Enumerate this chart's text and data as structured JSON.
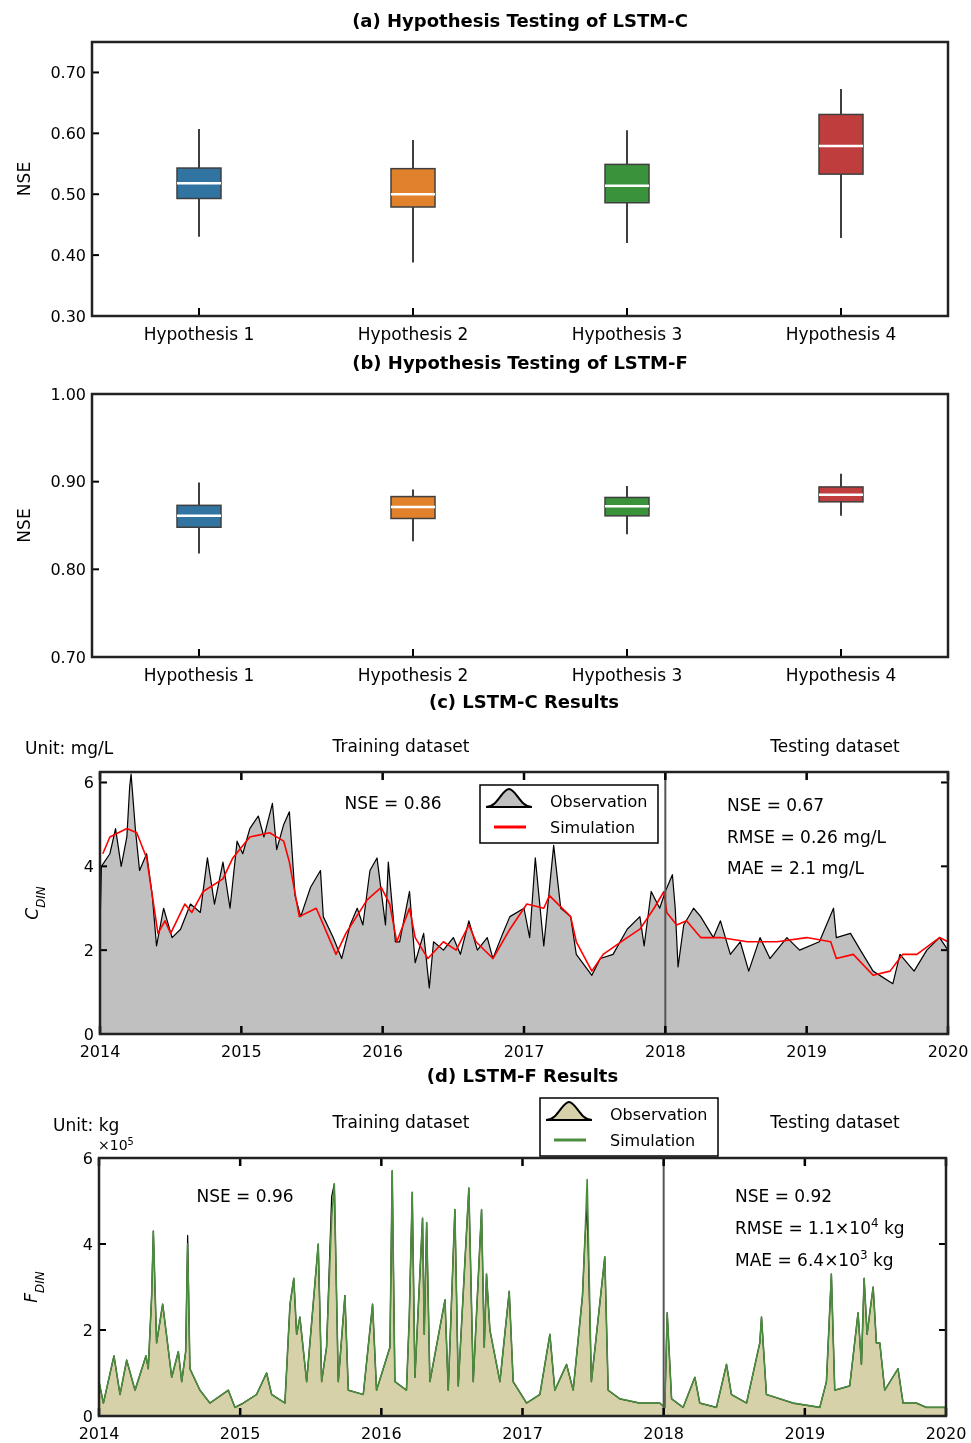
{
  "chart_data": [
    {
      "type": "box",
      "title": "(a) Hypothesis Testing of LSTM-C",
      "ylabel": "NSE",
      "categories": [
        "Hypothesis 1",
        "Hypothesis 2",
        "Hypothesis 3",
        "Hypothesis 4"
      ],
      "colors": [
        "#3274a1",
        "#e1812c",
        "#3a923a",
        "#c03d3e"
      ],
      "boxes": [
        {
          "low": 0.43,
          "q1": 0.493,
          "median": 0.518,
          "q3": 0.543,
          "high": 0.607
        },
        {
          "low": 0.388,
          "q1": 0.479,
          "median": 0.5,
          "q3": 0.542,
          "high": 0.589
        },
        {
          "low": 0.42,
          "q1": 0.486,
          "median": 0.514,
          "q3": 0.549,
          "high": 0.605
        },
        {
          "low": 0.428,
          "q1": 0.533,
          "median": 0.579,
          "q3": 0.631,
          "high": 0.673
        }
      ],
      "ylim": [
        0.3,
        0.75
      ],
      "yticks": [
        {
          "value": 0.3,
          "label": "0.30"
        },
        {
          "value": 0.4,
          "label": "0.40"
        },
        {
          "value": 0.5,
          "label": "0.50"
        },
        {
          "value": 0.6,
          "label": "0.60"
        },
        {
          "value": 0.7,
          "label": "0.70"
        }
      ]
    },
    {
      "type": "box",
      "title": "(b) Hypothesis Testing of LSTM-F",
      "ylabel": "NSE",
      "categories": [
        "Hypothesis 1",
        "Hypothesis 2",
        "Hypothesis 3",
        "Hypothesis 4"
      ],
      "colors": [
        "#3274a1",
        "#e1812c",
        "#3a923a",
        "#c03d3e"
      ],
      "boxes": [
        {
          "low": 0.818,
          "q1": 0.848,
          "median": 0.861,
          "q3": 0.873,
          "high": 0.899
        },
        {
          "low": 0.832,
          "q1": 0.858,
          "median": 0.871,
          "q3": 0.883,
          "high": 0.891
        },
        {
          "low": 0.84,
          "q1": 0.861,
          "median": 0.872,
          "q3": 0.882,
          "high": 0.895
        },
        {
          "low": 0.861,
          "q1": 0.877,
          "median": 0.885,
          "q3": 0.894,
          "high": 0.909
        }
      ],
      "ylim": [
        0.7,
        1.0
      ],
      "yticks": [
        {
          "value": 0.7,
          "label": "0.70"
        },
        {
          "value": 0.8,
          "label": "0.80"
        },
        {
          "value": 0.9,
          "label": "0.90"
        },
        {
          "value": 1.0,
          "label": "1.00"
        }
      ]
    },
    {
      "type": "area",
      "title": "(c) LSTM-C Results",
      "ylabel": "C$_{DIN}$",
      "xlim": [
        2014,
        2020
      ],
      "xticks": [
        2014,
        2015,
        2016,
        2017,
        2018,
        2019,
        2020
      ],
      "ylim": [
        0,
        6.25
      ],
      "yticks": [
        0,
        2,
        4,
        6
      ],
      "legend": "top",
      "ref_lines": [
        {
          "axis": "x",
          "value": 2018,
          "color": "#555555"
        }
      ],
      "annotations": [
        "Unit: mg/L",
        "Training dataset",
        "Testing dataset",
        "NSE = 0.86",
        "NSE = 0.67",
        "RMSE = 0.26 mg/L",
        "MAE = 2.1 mg/L"
      ],
      "series": [
        {
          "name": "Observation",
          "type": "area",
          "color": "#c0c0c0",
          "x": [
            2014.0,
            2014.01,
            2014.07,
            2014.11,
            2014.15,
            2014.19,
            2014.21,
            2014.22,
            2014.25,
            2014.28,
            2014.33,
            2014.37,
            2014.4,
            2014.45,
            2014.51,
            2014.57,
            2014.64,
            2014.71,
            2014.76,
            2014.81,
            2014.87,
            2014.92,
            2014.97,
            2015.01,
            2015.06,
            2015.12,
            2015.16,
            2015.22,
            2015.25,
            2015.3,
            2015.34,
            2015.38,
            2015.42,
            2015.49,
            2015.56,
            2015.58,
            2015.65,
            2015.71,
            2015.77,
            2015.82,
            2015.86,
            2015.91,
            2015.96,
            2016.02,
            2016.04,
            2016.09,
            2016.12,
            2016.19,
            2016.23,
            2016.29,
            2016.33,
            2016.36,
            2016.43,
            2016.5,
            2016.55,
            2016.61,
            2016.67,
            2016.74,
            2016.78,
            2016.85,
            2016.9,
            2017.0,
            2017.04,
            2017.08,
            2017.14,
            2017.21,
            2017.26,
            2017.33,
            2017.37,
            2017.48,
            2017.54,
            2017.63,
            2017.73,
            2017.82,
            2017.85,
            2017.9,
            2017.96,
            2018.0,
            2018.05,
            2018.07,
            2018.09,
            2018.13,
            2018.2,
            2018.25,
            2018.34,
            2018.39,
            2018.46,
            2018.53,
            2018.59,
            2018.67,
            2018.74,
            2018.86,
            2018.95,
            2019.09,
            2019.19,
            2019.21,
            2019.31,
            2019.38,
            2019.47,
            2019.61,
            2019.66,
            2019.76,
            2019.85,
            2019.94,
            2020.0
          ],
          "values": [
            2.5,
            4.0,
            4.3,
            4.9,
            4.0,
            4.7,
            5.9,
            6.2,
            4.9,
            3.9,
            4.3,
            3.3,
            2.1,
            3.0,
            2.3,
            2.5,
            3.1,
            2.9,
            4.2,
            3.1,
            4.1,
            3.0,
            4.6,
            4.3,
            4.9,
            5.2,
            4.7,
            5.5,
            4.4,
            5.0,
            5.3,
            3.3,
            2.8,
            3.5,
            3.9,
            2.8,
            2.3,
            1.8,
            2.6,
            3.0,
            2.6,
            3.9,
            4.2,
            2.6,
            4.1,
            2.2,
            2.2,
            3.4,
            1.7,
            2.4,
            1.1,
            2.2,
            2.0,
            2.3,
            1.9,
            2.7,
            2.0,
            2.3,
            1.8,
            2.4,
            2.8,
            3.0,
            2.3,
            4.2,
            2.1,
            4.5,
            3.0,
            2.8,
            1.9,
            1.4,
            1.8,
            1.9,
            2.5,
            2.8,
            2.1,
            3.4,
            3.0,
            3.4,
            3.8,
            3.0,
            1.6,
            2.6,
            3.0,
            2.8,
            2.3,
            2.7,
            1.9,
            2.2,
            1.5,
            2.3,
            1.8,
            2.3,
            2.0,
            2.2,
            3.0,
            2.3,
            2.4,
            2.0,
            1.5,
            1.2,
            1.9,
            1.5,
            2.0,
            2.3,
            2.0
          ]
        },
        {
          "name": "Simulation",
          "type": "line",
          "color": "#ff0000",
          "x": [
            2014.02,
            2014.07,
            2014.19,
            2014.26,
            2014.33,
            2014.37,
            2014.41,
            2014.46,
            2014.5,
            2014.6,
            2014.65,
            2014.73,
            2014.87,
            2014.94,
            2015.06,
            2015.2,
            2015.3,
            2015.34,
            2015.41,
            2015.53,
            2015.67,
            2015.74,
            2015.89,
            2015.99,
            2016.05,
            2016.1,
            2016.19,
            2016.23,
            2016.32,
            2016.43,
            2016.52,
            2016.61,
            2016.66,
            2016.78,
            2016.9,
            2017.02,
            2017.14,
            2017.18,
            2017.33,
            2017.37,
            2017.48,
            2017.56,
            2017.73,
            2017.82,
            2017.92,
            2017.99,
            2018.01,
            2018.08,
            2018.15,
            2018.25,
            2018.39,
            2018.58,
            2018.79,
            2019.0,
            2019.17,
            2019.21,
            2019.33,
            2019.47,
            2019.59,
            2019.68,
            2019.78,
            2019.94,
            2020.0
          ],
          "values": [
            4.3,
            4.7,
            4.9,
            4.8,
            4.2,
            3.3,
            2.4,
            2.7,
            2.4,
            3.1,
            2.9,
            3.4,
            3.7,
            4.2,
            4.7,
            4.8,
            4.6,
            4.1,
            2.8,
            3.0,
            1.9,
            2.4,
            3.2,
            3.5,
            3.1,
            2.2,
            3.0,
            2.3,
            1.8,
            2.2,
            2.0,
            2.6,
            2.2,
            1.8,
            2.5,
            3.1,
            3.0,
            3.3,
            2.8,
            2.2,
            1.5,
            1.9,
            2.3,
            2.5,
            3.0,
            3.4,
            2.9,
            2.6,
            2.7,
            2.3,
            2.3,
            2.2,
            2.2,
            2.3,
            2.2,
            1.8,
            1.9,
            1.4,
            1.5,
            1.9,
            1.9,
            2.3,
            2.2
          ]
        }
      ]
    },
    {
      "type": "area",
      "title": "(d) LSTM-F Results",
      "ylabel": "F$_{DIN}$",
      "xlim": [
        2014,
        2020
      ],
      "xticks": [
        2014,
        2015,
        2016,
        2017,
        2018,
        2019,
        2020
      ],
      "ylim": [
        0,
        6
      ],
      "yticks": [
        0,
        2,
        4,
        6
      ],
      "legend": "top",
      "ref_lines": [
        {
          "axis": "x",
          "value": 2018,
          "color": "#555555"
        }
      ],
      "annotations": [
        "Unit: kg",
        "×10$^{5}$",
        "Training dataset",
        "Testing dataset",
        "NSE = 0.96",
        "NSE = 0.92",
        "RMSE = 1.1×10$^{4}$ kg",
        "MAE = 6.4×10$^{3}$ kg"
      ],
      "series": [
        {
          "name": "Observation",
          "type": "area",
          "color": "#d6d1a9",
          "x": [
            2014.0,
            2014.031,
            2014.106,
            2014.149,
            2014.196,
            2014.255,
            2014.333,
            2014.349,
            2014.373,
            2014.385,
            2014.408,
            2014.451,
            2014.474,
            2014.515,
            2014.562,
            2014.586,
            2014.614,
            2014.628,
            2014.644,
            2014.715,
            2014.786,
            2014.916,
            2014.963,
            2015.022,
            2015.116,
            2015.187,
            2015.223,
            2015.317,
            2015.353,
            2015.38,
            2015.4,
            2015.423,
            2015.471,
            2015.553,
            2015.577,
            2015.612,
            2015.648,
            2015.667,
            2015.695,
            2015.742,
            2015.766,
            2015.872,
            2015.938,
            2015.966,
            2016.061,
            2016.077,
            2016.096,
            2016.178,
            2016.198,
            2016.219,
            2016.238,
            2016.292,
            2016.304,
            2016.321,
            2016.344,
            2016.451,
            2016.474,
            2016.521,
            2016.545,
            2016.62,
            2016.651,
            2016.71,
            2016.729,
            2016.745,
            2016.769,
            2016.84,
            2016.906,
            2016.934,
            2017.029,
            2017.123,
            2017.194,
            2017.229,
            2017.312,
            2017.359,
            2017.425,
            2017.442,
            2017.458,
            2017.488,
            2017.583,
            2017.607,
            2017.689,
            2017.831,
            2017.973,
            2018.008,
            2018.025,
            2018.056,
            2018.138,
            2018.221,
            2018.256,
            2018.374,
            2018.445,
            2018.48,
            2018.587,
            2018.681,
            2018.693,
            2018.728,
            2018.917,
            2019.106,
            2019.153,
            2019.188,
            2019.212,
            2019.318,
            2019.377,
            2019.401,
            2019.42,
            2019.441,
            2019.46,
            2019.484,
            2019.507,
            2019.531,
            2019.566,
            2019.66,
            2019.696,
            2019.79,
            2019.861,
            2020.0
          ],
          "values": [
            0.8,
            0.3,
            1.4,
            0.5,
            1.3,
            0.6,
            1.4,
            1.1,
            2.8,
            4.3,
            1.7,
            2.6,
            2.0,
            0.9,
            1.5,
            0.8,
            1.5,
            4.2,
            1.1,
            0.6,
            0.3,
            0.6,
            0.2,
            0.3,
            0.5,
            1.0,
            0.5,
            0.3,
            2.6,
            3.2,
            1.9,
            2.3,
            0.8,
            4.0,
            0.8,
            1.6,
            5.1,
            5.4,
            0.8,
            2.8,
            0.6,
            0.5,
            2.6,
            0.6,
            1.6,
            5.7,
            0.8,
            0.6,
            2.3,
            5.2,
            0.9,
            4.6,
            1.9,
            4.5,
            0.8,
            2.7,
            0.6,
            4.8,
            0.7,
            5.3,
            0.8,
            4.8,
            1.6,
            3.3,
            2.0,
            0.8,
            2.9,
            0.8,
            0.3,
            0.5,
            1.9,
            0.6,
            1.2,
            0.6,
            2.8,
            4.1,
            4.9,
            0.8,
            3.7,
            0.6,
            0.4,
            0.3,
            0.3,
            0.2,
            2.4,
            0.4,
            0.2,
            0.9,
            0.3,
            0.2,
            1.2,
            0.5,
            0.3,
            1.7,
            2.3,
            0.5,
            0.3,
            0.2,
            0.8,
            3.3,
            0.6,
            0.7,
            2.4,
            1.2,
            3.2,
            1.9,
            2.4,
            3.0,
            1.7,
            1.7,
            0.6,
            1.1,
            0.3,
            0.3,
            0.2,
            0.2
          ]
        },
        {
          "name": "Simulation",
          "type": "line",
          "color": "#4c8c3e",
          "x": [
            2014.0,
            2014.031,
            2014.106,
            2014.149,
            2014.196,
            2014.255,
            2014.333,
            2014.349,
            2014.373,
            2014.385,
            2014.408,
            2014.451,
            2014.474,
            2014.515,
            2014.562,
            2014.586,
            2014.614,
            2014.628,
            2014.644,
            2014.715,
            2014.786,
            2014.916,
            2014.963,
            2015.022,
            2015.116,
            2015.187,
            2015.223,
            2015.317,
            2015.353,
            2015.38,
            2015.4,
            2015.423,
            2015.471,
            2015.553,
            2015.577,
            2015.612,
            2015.648,
            2015.667,
            2015.695,
            2015.742,
            2015.766,
            2015.872,
            2015.938,
            2015.966,
            2016.061,
            2016.077,
            2016.096,
            2016.178,
            2016.198,
            2016.219,
            2016.238,
            2016.292,
            2016.304,
            2016.321,
            2016.344,
            2016.451,
            2016.474,
            2016.521,
            2016.545,
            2016.62,
            2016.651,
            2016.71,
            2016.729,
            2016.745,
            2016.769,
            2016.84,
            2016.906,
            2016.934,
            2017.029,
            2017.123,
            2017.194,
            2017.229,
            2017.312,
            2017.359,
            2017.425,
            2017.442,
            2017.458,
            2017.488,
            2017.583,
            2017.607,
            2017.689,
            2017.831,
            2017.973,
            2018.008,
            2018.025,
            2018.056,
            2018.138,
            2018.221,
            2018.256,
            2018.374,
            2018.445,
            2018.48,
            2018.587,
            2018.681,
            2018.693,
            2018.728,
            2018.917,
            2019.106,
            2019.153,
            2019.188,
            2019.212,
            2019.318,
            2019.377,
            2019.401,
            2019.42,
            2019.441,
            2019.46,
            2019.484,
            2019.507,
            2019.531,
            2019.566,
            2019.66,
            2019.696,
            2019.79,
            2019.861,
            2020.0
          ],
          "values": [
            0.8,
            0.3,
            1.4,
            0.5,
            1.3,
            0.6,
            1.4,
            1.1,
            2.8,
            4.3,
            1.7,
            2.6,
            2.0,
            0.9,
            1.5,
            0.8,
            1.5,
            4.0,
            1.1,
            0.6,
            0.3,
            0.6,
            0.2,
            0.3,
            0.5,
            1.0,
            0.5,
            0.3,
            2.6,
            3.2,
            1.9,
            2.3,
            0.8,
            4.0,
            0.8,
            1.6,
            4.6,
            5.4,
            0.8,
            2.8,
            0.6,
            0.5,
            2.6,
            0.6,
            1.6,
            5.7,
            0.8,
            0.6,
            2.3,
            5.2,
            0.9,
            4.6,
            1.9,
            4.5,
            0.8,
            2.7,
            0.6,
            4.8,
            0.7,
            5.3,
            0.8,
            4.8,
            1.6,
            3.3,
            2.0,
            0.8,
            2.9,
            0.8,
            0.3,
            0.5,
            1.9,
            0.6,
            1.2,
            0.6,
            2.8,
            4.1,
            5.5,
            0.8,
            3.7,
            0.6,
            0.4,
            0.3,
            0.3,
            0.2,
            2.4,
            0.4,
            0.2,
            0.9,
            0.3,
            0.2,
            1.2,
            0.5,
            0.3,
            1.7,
            2.3,
            0.5,
            0.3,
            0.2,
            0.8,
            3.3,
            0.6,
            0.7,
            2.4,
            1.2,
            3.2,
            1.9,
            2.4,
            3.0,
            1.7,
            1.7,
            0.6,
            1.1,
            0.3,
            0.3,
            0.2,
            0.2
          ]
        }
      ]
    }
  ]
}
